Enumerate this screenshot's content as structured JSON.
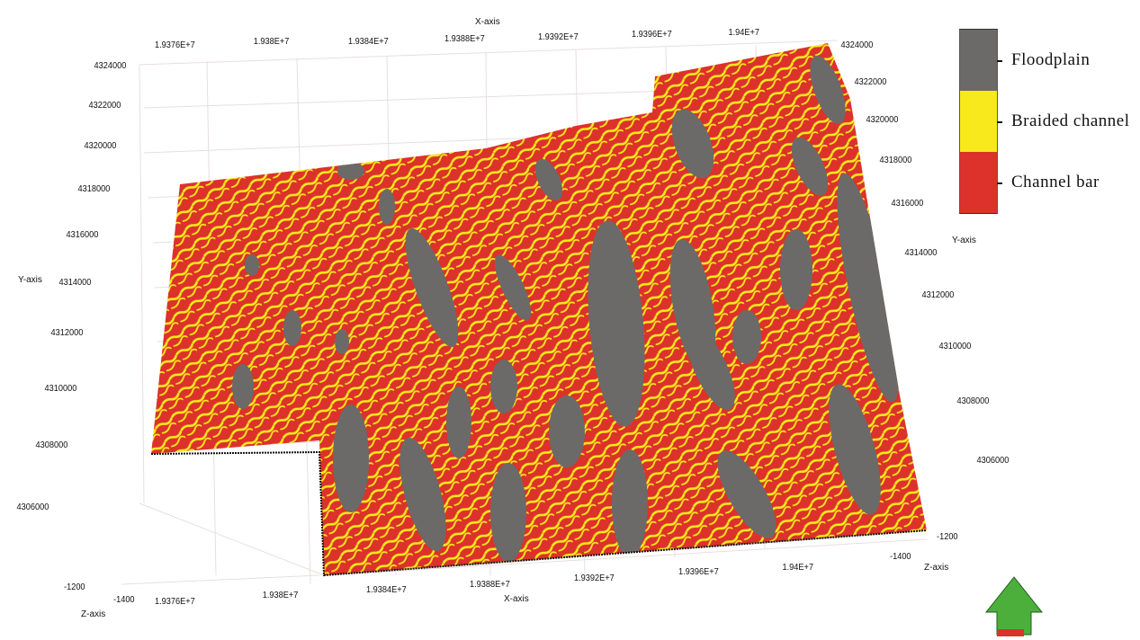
{
  "axes": {
    "x_label": "X-axis",
    "y_label": "Y-axis",
    "z_label": "Z-axis",
    "x_ticks": [
      "1.9376E+7",
      "1.938E+7",
      "1.9384E+7",
      "1.9388E+7",
      "1.9392E+7",
      "1.9396E+7",
      "1.94E+7"
    ],
    "y_ticks": [
      "4324000",
      "4322000",
      "4320000",
      "4318000",
      "4316000",
      "4314000",
      "4312000",
      "4310000",
      "4308000",
      "4306000"
    ],
    "z_ticks": [
      "-1200",
      "-1400"
    ]
  },
  "legend": {
    "items": [
      {
        "label": "Floodplain",
        "color": "#6b6a68"
      },
      {
        "label": "Braided channel",
        "color": "#f7e91b"
      },
      {
        "label": "Channel bar",
        "color": "#dc322b"
      }
    ]
  },
  "colors": {
    "floodplain": "#6b6a68",
    "braided_channel": "#f7e91b",
    "channel_bar": "#dc322b",
    "north_arrow": "#4caf3c"
  },
  "north_arrow": {
    "icon": "north-arrow-icon"
  }
}
